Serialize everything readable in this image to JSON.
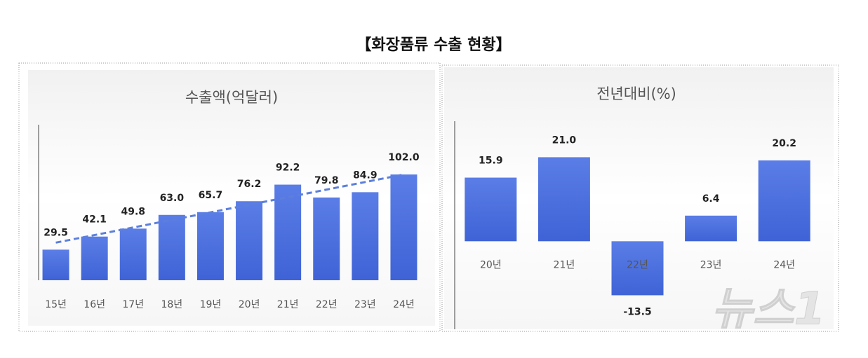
{
  "title": "【화장품류 수출 현황】",
  "watermark": "뉴스1",
  "chart_data": [
    {
      "type": "bar",
      "title": "수출액(억달러)",
      "categories": [
        "15년",
        "16년",
        "17년",
        "18년",
        "19년",
        "20년",
        "21년",
        "22년",
        "23년",
        "24년"
      ],
      "values": [
        29.5,
        42.1,
        49.8,
        63.0,
        65.7,
        76.2,
        92.2,
        79.8,
        84.9,
        102.0
      ],
      "value_labels": [
        "29.5",
        "42.1",
        "49.8",
        "63.0",
        "65.7",
        "76.2",
        "92.2",
        "79.8",
        "84.9",
        "102.0"
      ],
      "color": "#4a6ee0",
      "ylim": [
        0,
        150
      ],
      "trendline": true
    },
    {
      "type": "bar",
      "title": "전년대비(%)",
      "categories": [
        "20년",
        "21년",
        "22년",
        "23년",
        "24년"
      ],
      "values": [
        15.9,
        21.0,
        -13.5,
        6.4,
        20.2
      ],
      "value_labels": [
        "15.9",
        "21.0",
        "-13.5",
        "6.4",
        "20.2"
      ],
      "color": "#4a6ee0",
      "ylim": [
        -22,
        30
      ]
    }
  ]
}
